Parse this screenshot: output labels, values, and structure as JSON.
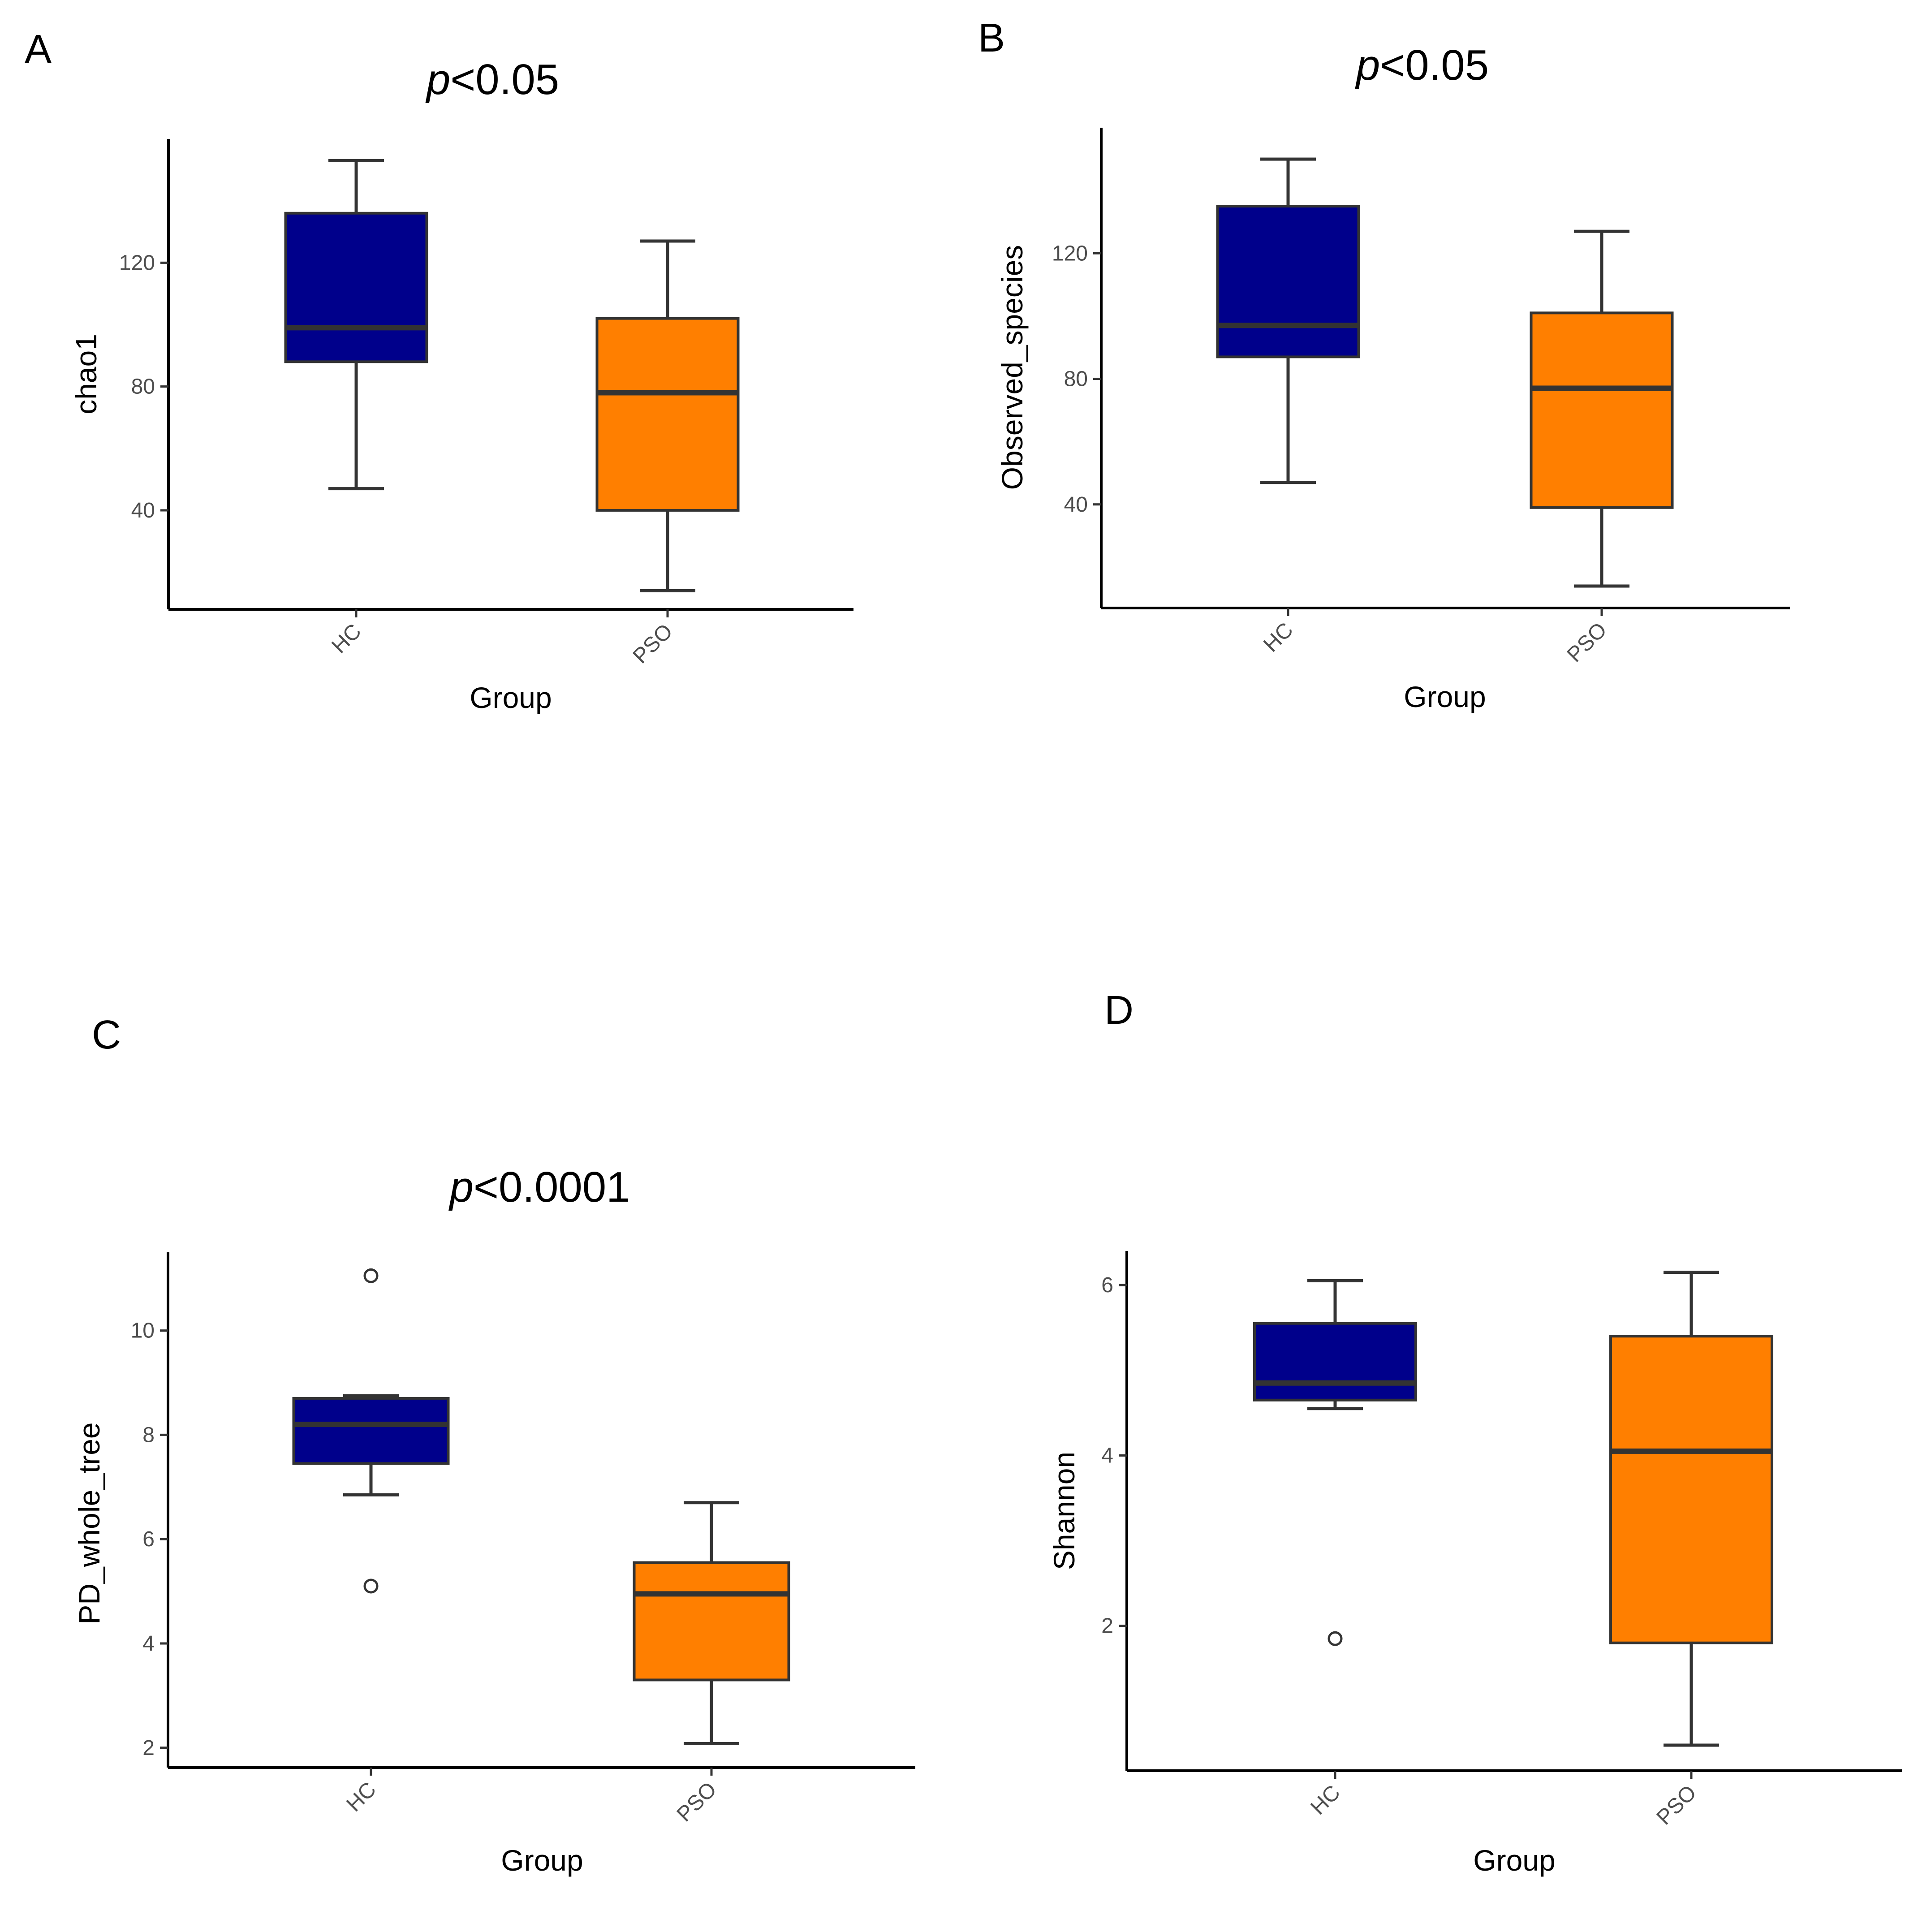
{
  "colors": {
    "HC": "#00008b",
    "PSO": "#ff7f00"
  },
  "chart_data": [
    {
      "type": "box",
      "panel": "A",
      "title_italic": "p",
      "title_rest": "<0.05",
      "xlabel": "Group",
      "ylabel": "chao1",
      "categories": [
        "HC",
        "PSO"
      ],
      "yticks": [
        40,
        80,
        120
      ],
      "ylim": [
        8,
        160
      ],
      "boxes": [
        {
          "group": "HC",
          "min": 47,
          "q1": 88,
          "median": 99,
          "q3": 136,
          "max": 153,
          "outliers": []
        },
        {
          "group": "PSO",
          "min": 14,
          "q1": 40,
          "median": 78,
          "q3": 102,
          "max": 127,
          "outliers": []
        }
      ]
    },
    {
      "type": "box",
      "panel": "B",
      "title_italic": "p",
      "title_rest": "<0.05",
      "xlabel": "Group",
      "ylabel": "Observed_species",
      "categories": [
        "HC",
        "PSO"
      ],
      "yticks": [
        40,
        80,
        120
      ],
      "ylim": [
        7,
        160
      ],
      "boxes": [
        {
          "group": "HC",
          "min": 47,
          "q1": 87,
          "median": 97,
          "q3": 135,
          "max": 150,
          "outliers": []
        },
        {
          "group": "PSO",
          "min": 14,
          "q1": 39,
          "median": 77,
          "q3": 101,
          "max": 127,
          "outliers": []
        }
      ]
    },
    {
      "type": "box",
      "panel": "C",
      "title_italic": "p",
      "title_rest": "<0.0001",
      "xlabel": "Group",
      "ylabel": "PD_whole_tree",
      "categories": [
        "HC",
        "PSO"
      ],
      "yticks": [
        2,
        4,
        6,
        8,
        10
      ],
      "ylim": [
        1.62,
        11.5
      ],
      "boxes": [
        {
          "group": "HC",
          "min": 6.85,
          "q1": 7.45,
          "median": 8.2,
          "q3": 8.7,
          "max": 8.75,
          "outliers": [
            11.05,
            5.1
          ]
        },
        {
          "group": "PSO",
          "min": 2.08,
          "q1": 3.3,
          "median": 4.95,
          "q3": 5.55,
          "max": 6.7,
          "outliers": []
        }
      ]
    },
    {
      "type": "box",
      "panel": "D",
      "title_italic": "",
      "title_rest": "",
      "xlabel": "Group",
      "ylabel": "Shannon",
      "categories": [
        "HC",
        "PSO"
      ],
      "yticks": [
        2,
        4,
        6
      ],
      "ylim": [
        0.3,
        6.4
      ],
      "boxes": [
        {
          "group": "HC",
          "min": 4.55,
          "q1": 4.65,
          "median": 4.85,
          "q3": 5.55,
          "max": 6.05,
          "outliers": [
            1.85
          ]
        },
        {
          "group": "PSO",
          "min": 0.6,
          "q1": 1.8,
          "median": 4.05,
          "q3": 5.4,
          "max": 6.15,
          "outliers": []
        }
      ]
    }
  ]
}
